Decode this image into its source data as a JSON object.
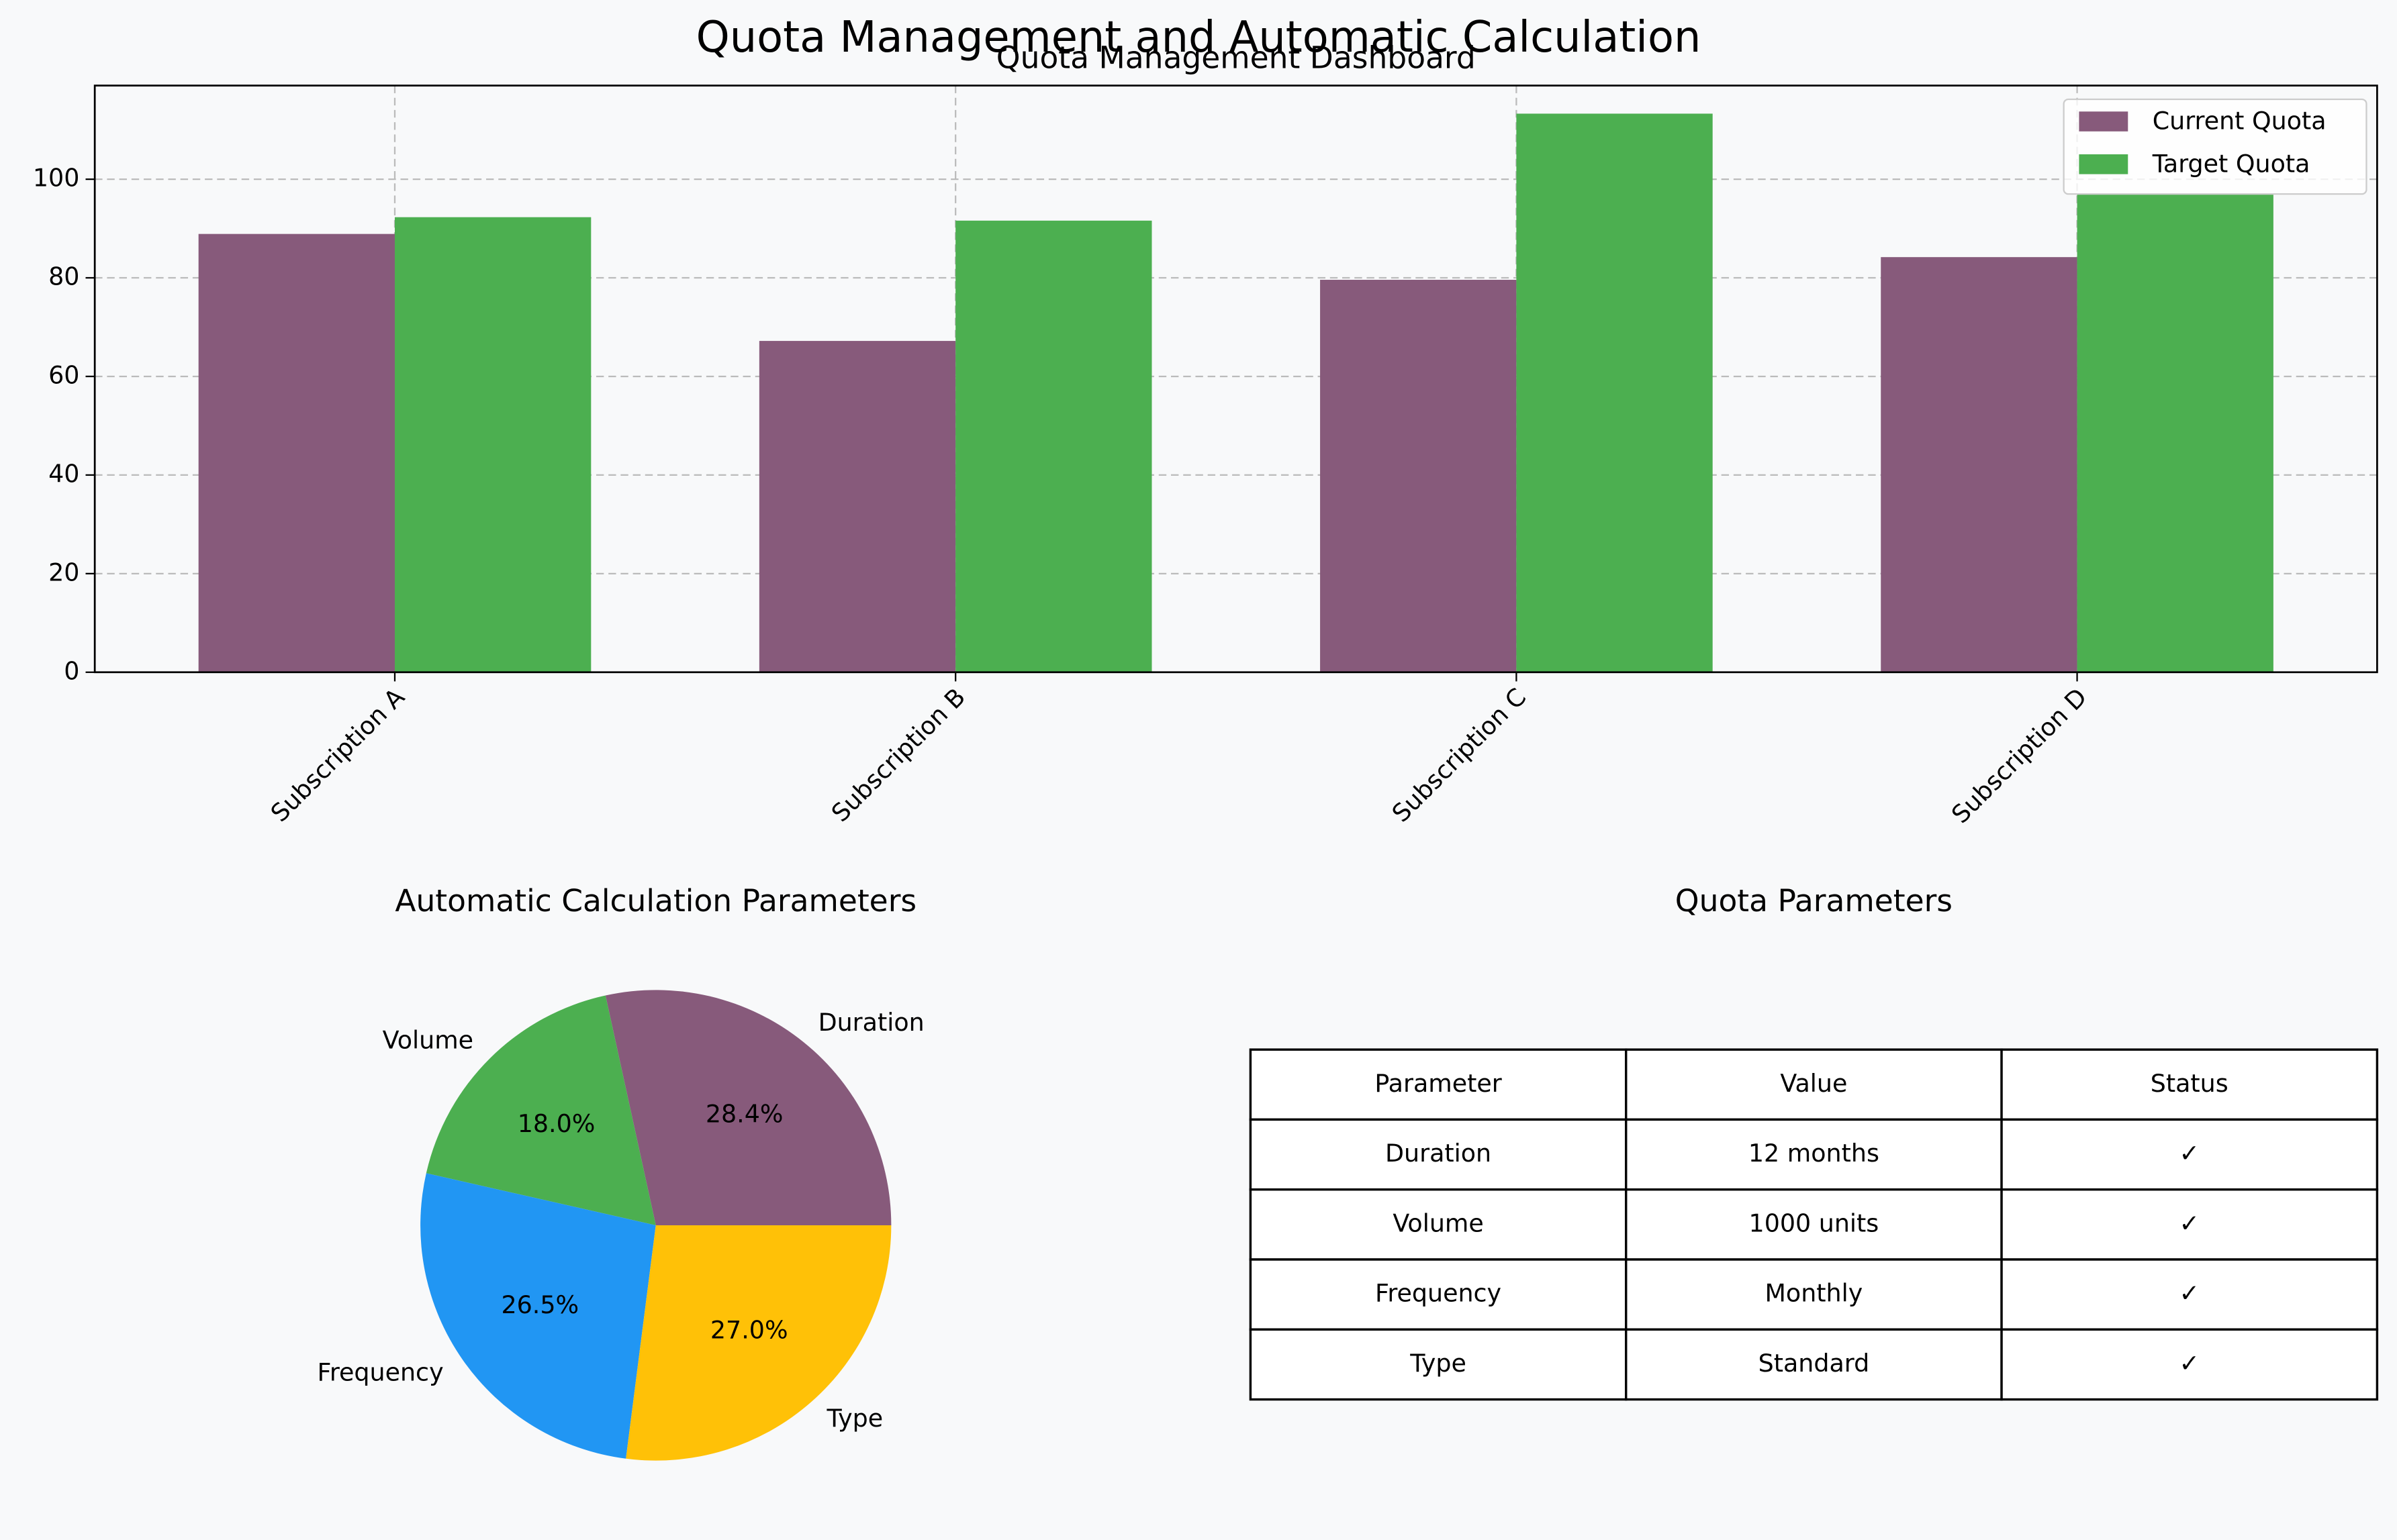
{
  "title": "Quota Management and Automatic Calculation",
  "chart_data": [
    {
      "type": "bar",
      "title": "Quota Management Dashboard",
      "categories": [
        "Subscription A",
        "Subscription B",
        "Subscription C",
        "Subscription D"
      ],
      "series": [
        {
          "name": "Current Quota",
          "color": "#875a7b",
          "values": [
            88.9,
            67.2,
            79.6,
            84.2
          ]
        },
        {
          "name": "Target Quota",
          "color": "#4caf50",
          "values": [
            92.3,
            91.6,
            113.3,
            96.9
          ]
        }
      ],
      "ylim": [
        0,
        119
      ],
      "yticks": [
        0,
        20,
        40,
        60,
        80,
        100
      ],
      "grid": true,
      "legend": "upper right"
    },
    {
      "type": "pie",
      "title": "Automatic Calculation Parameters",
      "categories": [
        "Duration",
        "Volume",
        "Frequency",
        "Type"
      ],
      "values": [
        28.4,
        18.0,
        26.5,
        27.0
      ],
      "value_labels": [
        "28.4%",
        "18.0%",
        "26.5%",
        "27.0%"
      ],
      "colors": [
        "#875a7b",
        "#4caf50",
        "#2196f3",
        "#ffc107"
      ]
    }
  ],
  "table": {
    "title": "Quota Parameters",
    "header": [
      "Parameter",
      "Value",
      "Status"
    ],
    "rows": [
      [
        "Duration",
        "12 months",
        "✓"
      ],
      [
        "Volume",
        "1000 units",
        "✓"
      ],
      [
        "Frequency",
        "Monthly",
        "✓"
      ],
      [
        "Type",
        "Standard",
        "✓"
      ]
    ]
  }
}
